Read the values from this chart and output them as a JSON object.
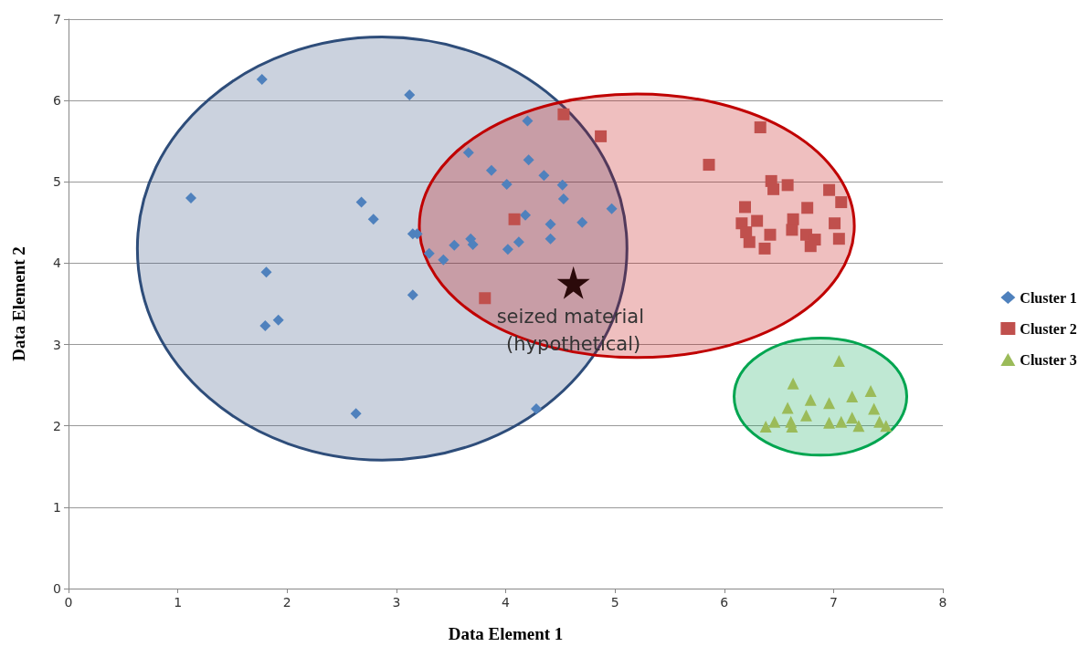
{
  "chart_data": {
    "type": "scatter",
    "xlabel": "Data Element 1",
    "ylabel": "Data Element 2",
    "xlim": [
      0,
      8
    ],
    "ylim": [
      0,
      7
    ],
    "xticks": [
      0,
      1,
      2,
      3,
      4,
      5,
      6,
      7,
      8
    ],
    "yticks": [
      0,
      1,
      2,
      3,
      4,
      5,
      6,
      7
    ],
    "grid": "y",
    "legend": "right",
    "series": [
      {
        "type": "area",
        "color": "#2e4d7a",
        "x": [
          5.11,
          4.94,
          4.45,
          3.73,
          2.87,
          2.01,
          1.29,
          0.8,
          0.63,
          0.8,
          1.29,
          2.01,
          2.87,
          3.73,
          4.45,
          4.94,
          5.11
        ],
        "values": [
          4.18,
          5.18,
          6.02,
          6.58,
          6.78,
          6.58,
          6.02,
          5.18,
          4.18,
          3.18,
          2.34,
          1.78,
          1.58,
          1.78,
          2.34,
          3.18,
          4.18
        ]
      },
      {
        "type": "area",
        "color": "#c00000",
        "x": [
          7.19,
          7.04,
          6.61,
          5.96,
          5.2,
          4.44,
          3.79,
          3.36,
          3.21,
          3.36,
          3.79,
          4.44,
          5.2,
          5.96,
          6.61,
          7.04,
          7.19
        ],
        "values": [
          4.46,
          5.08,
          5.61,
          5.96,
          6.08,
          5.96,
          5.61,
          5.08,
          4.46,
          3.84,
          3.31,
          2.96,
          2.84,
          2.96,
          3.31,
          3.84,
          4.46
        ]
      },
      {
        "type": "area",
        "color": "#00a550",
        "x": [
          7.67,
          7.61,
          7.44,
          7.18,
          6.88,
          6.58,
          6.32,
          6.15,
          6.09,
          6.15,
          6.32,
          6.58,
          6.88,
          7.18,
          7.44,
          7.61,
          7.67
        ],
        "values": [
          2.36,
          2.64,
          2.87,
          3.03,
          3.08,
          3.03,
          2.87,
          2.64,
          2.36,
          2.08,
          1.85,
          1.69,
          1.64,
          1.69,
          1.85,
          2.08,
          2.36
        ]
      },
      {
        "name": "Cluster 1",
        "marker": "diamond",
        "color": "#4f81bd",
        "x": [
          1.77,
          3.12,
          1.12,
          2.68,
          2.79,
          3.15,
          3.19,
          1.81,
          3.15,
          1.8,
          1.92,
          2.63,
          4.28,
          3.3,
          3.43,
          4.2,
          3.66,
          4.21,
          3.87,
          4.35,
          4.01,
          4.52,
          4.53,
          4.97,
          4.18,
          4.7,
          4.41,
          3.68,
          3.7,
          3.53,
          4.12,
          4.41,
          4.02
        ],
        "values": [
          6.26,
          6.07,
          4.8,
          4.75,
          4.54,
          4.36,
          4.36,
          3.89,
          3.61,
          3.23,
          3.3,
          2.15,
          2.21,
          4.12,
          4.04,
          5.75,
          5.36,
          5.27,
          5.14,
          5.08,
          4.97,
          4.96,
          4.79,
          4.67,
          4.59,
          4.5,
          4.48,
          4.3,
          4.23,
          4.22,
          4.26,
          4.3,
          4.17
        ]
      },
      {
        "name": "Cluster 2",
        "marker": "square",
        "color": "#c0504d",
        "x": [
          4.53,
          4.87,
          4.08,
          3.81,
          5.86,
          6.33,
          6.43,
          6.58,
          6.45,
          6.96,
          7.07,
          6.19,
          6.16,
          6.3,
          6.2,
          6.42,
          6.23,
          6.37,
          6.63,
          6.76,
          6.62,
          6.75,
          6.83,
          6.79,
          7.01,
          7.05
        ],
        "values": [
          5.83,
          5.56,
          4.54,
          3.57,
          5.21,
          5.67,
          5.01,
          4.96,
          4.91,
          4.9,
          4.75,
          4.69,
          4.49,
          4.52,
          4.38,
          4.35,
          4.26,
          4.18,
          4.54,
          4.68,
          4.41,
          4.35,
          4.29,
          4.21,
          4.49,
          4.3
        ]
      },
      {
        "name": "Cluster 3",
        "marker": "triangle",
        "color": "#9bbb59",
        "x": [
          7.05,
          6.63,
          6.79,
          6.58,
          6.96,
          7.17,
          7.34,
          6.75,
          7.37,
          6.46,
          6.38,
          6.61,
          6.62,
          6.96,
          7.07,
          7.17,
          7.23,
          7.42,
          7.48
        ],
        "values": [
          2.8,
          2.52,
          2.32,
          2.22,
          2.28,
          2.36,
          2.43,
          2.13,
          2.21,
          2.05,
          1.99,
          2.05,
          1.99,
          2.04,
          2.05,
          2.1,
          2.0,
          2.05,
          2.0
        ]
      },
      {
        "marker": "star",
        "color": "#2b0a0a",
        "x": [
          4.62
        ],
        "values": [
          3.76
        ]
      }
    ],
    "annotations": [
      {
        "text": "seized material (hypothetical)",
        "x": 4.62,
        "y": 3.76
      }
    ]
  }
}
